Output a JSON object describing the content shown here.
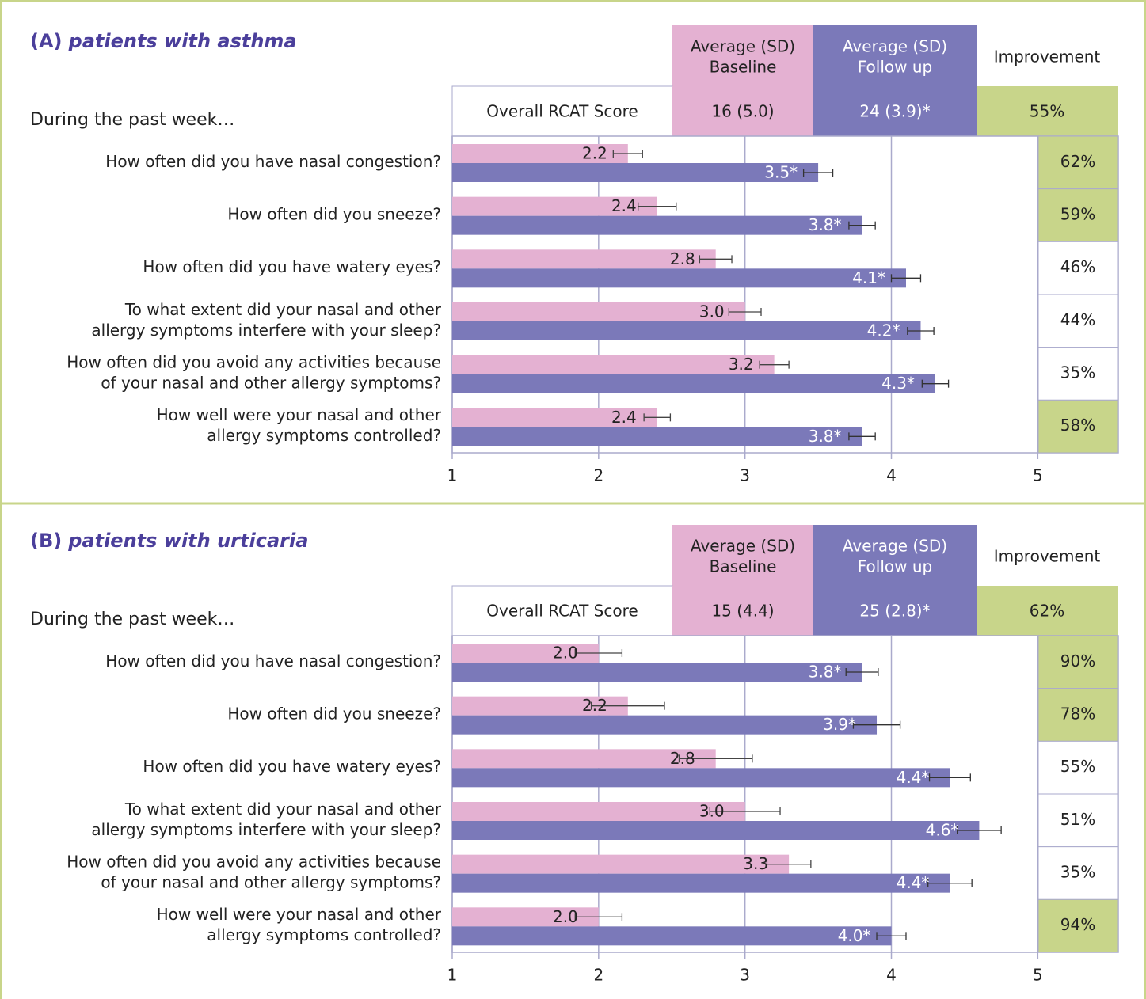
{
  "chart_data": [
    {
      "type": "bar",
      "title_prefix": "(A)",
      "title": "patients with asthma",
      "row_label": "During the past week…",
      "header": {
        "summary_label": "Overall RCAT Score",
        "baseline": [
          "Average (SD)",
          "Baseline"
        ],
        "follow_up": [
          "Average (SD)",
          "Follow up"
        ],
        "improvement": "Improvement",
        "baseline_value": "16 (5.0)",
        "follow_up_value": "24 (3.9)*",
        "improvement_value": "55%"
      },
      "categories": [
        [
          "How often did you have nasal congestion?"
        ],
        [
          "How often did you sneeze?"
        ],
        [
          "How often did you have watery eyes?"
        ],
        [
          "To what extent did your nasal and other",
          "allergy symptoms interfere with your sleep?"
        ],
        [
          "How often did you avoid any activities because",
          "of your nasal and other allergy symptoms?"
        ],
        [
          "How well were your nasal and other",
          "allergy symptoms controlled?"
        ]
      ],
      "series": [
        {
          "name": "Baseline",
          "color": "#e4b1d2",
          "values": [
            2.2,
            2.4,
            2.8,
            3.0,
            3.2,
            2.4
          ],
          "value_labels": [
            "2.2",
            "2.4",
            "2.8",
            "3.0",
            "3.2",
            "2.4"
          ],
          "errors": [
            0.1,
            0.13,
            0.11,
            0.11,
            0.1,
            0.09
          ]
        },
        {
          "name": "Follow up",
          "color": "#7b79b9",
          "values": [
            3.5,
            3.8,
            4.1,
            4.2,
            4.3,
            3.8
          ],
          "value_labels": [
            "3.5*",
            "3.8*",
            "4.1*",
            "4.2*",
            "4.3*",
            "3.8*"
          ],
          "errors": [
            0.1,
            0.09,
            0.1,
            0.09,
            0.09,
            0.09
          ]
        }
      ],
      "improvement": [
        "62%",
        "59%",
        "46%",
        "44%",
        "35%",
        "58%"
      ],
      "improvement_colors": [
        "#c8d58a",
        "#c8d58a",
        "#ffffff",
        "#ffffff",
        "#ffffff",
        "#c8d58a"
      ],
      "xlim": [
        1,
        5.55
      ],
      "xticks": [
        1,
        2,
        3,
        4,
        5
      ],
      "grid": true
    },
    {
      "type": "bar",
      "title_prefix": "(B)",
      "title": "patients with urticaria",
      "row_label": "During the past week…",
      "header": {
        "summary_label": "Overall RCAT Score",
        "baseline": [
          "Average (SD)",
          "Baseline"
        ],
        "follow_up": [
          "Average (SD)",
          "Follow up"
        ],
        "improvement": "Improvement",
        "baseline_value": "15 (4.4)",
        "follow_up_value": "25 (2.8)*",
        "improvement_value": "62%"
      },
      "categories": [
        [
          "How often did you have nasal congestion?"
        ],
        [
          "How often did you sneeze?"
        ],
        [
          "How often did you have watery eyes?"
        ],
        [
          "To what extent did your nasal and other",
          "allergy symptoms interfere with your sleep?"
        ],
        [
          "How often did you avoid any activities because",
          "of your nasal and other allergy symptoms?"
        ],
        [
          "How well were your nasal and other",
          "allergy symptoms controlled?"
        ]
      ],
      "series": [
        {
          "name": "Baseline",
          "color": "#e4b1d2",
          "values": [
            2.0,
            2.2,
            2.8,
            3.0,
            3.3,
            2.0
          ],
          "value_labels": [
            "2.0",
            "2.2",
            "2.8",
            "3.0",
            "3.3",
            "2.0"
          ],
          "errors": [
            0.16,
            0.25,
            0.25,
            0.24,
            0.15,
            0.16
          ]
        },
        {
          "name": "Follow up",
          "color": "#7b79b9",
          "values": [
            3.8,
            3.9,
            4.4,
            4.6,
            4.4,
            4.0
          ],
          "value_labels": [
            "3.8*",
            "3.9*",
            "4.4*",
            "4.6*",
            "4.4*",
            "4.0*"
          ],
          "errors": [
            0.11,
            0.16,
            0.14,
            0.15,
            0.15,
            0.1
          ]
        }
      ],
      "improvement": [
        "90%",
        "78%",
        "55%",
        "51%",
        "35%",
        "94%"
      ],
      "improvement_colors": [
        "#c8d58a",
        "#c8d58a",
        "#ffffff",
        "#ffffff",
        "#ffffff",
        "#c8d58a"
      ],
      "xlim": [
        1,
        5.55
      ],
      "xticks": [
        1,
        2,
        3,
        4,
        5
      ],
      "grid": true
    }
  ]
}
